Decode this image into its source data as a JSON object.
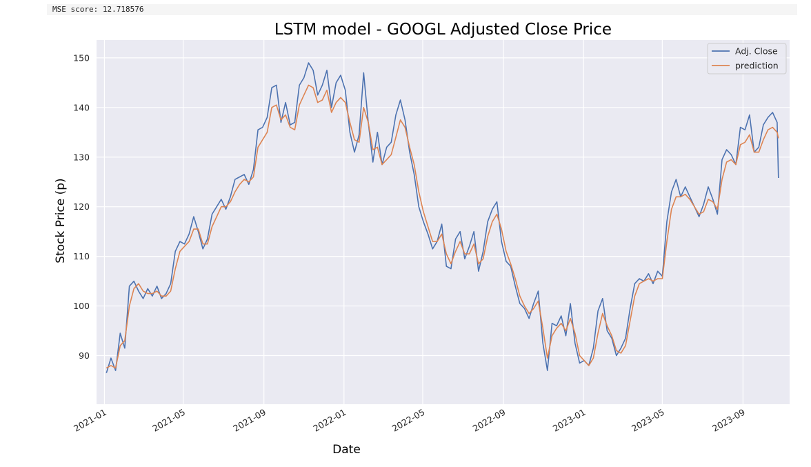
{
  "cell_output": {
    "text": "MSE score: 12.718576"
  },
  "chart_data": {
    "type": "line",
    "title": "LSTM model - GOOGL Adjusted Close Price",
    "xlabel": "Date",
    "ylabel": "Stock Price (p)",
    "x_type": "date",
    "xlim": [
      "2020-12-20",
      "2023-11-11"
    ],
    "ylim": [
      80.2,
      153.6
    ],
    "x_ticks": [
      "2021-01-01",
      "2021-05-01",
      "2021-09-01",
      "2022-01-01",
      "2022-05-01",
      "2022-09-01",
      "2023-01-01",
      "2023-05-01",
      "2023-09-01"
    ],
    "x_tick_labels": [
      "2021-01",
      "2021-05",
      "2021-09",
      "2022-01",
      "2022-05",
      "2022-09",
      "2023-01",
      "2023-05",
      "2023-09"
    ],
    "y_ticks": [
      90,
      100,
      110,
      120,
      130,
      140,
      150
    ],
    "y_tick_labels": [
      "90",
      "100",
      "110",
      "120",
      "130",
      "140",
      "150"
    ],
    "grid": true,
    "legend": "top-right",
    "colors": {
      "background": "#eaeaf2",
      "grid": "#ffffff",
      "actual": "#4c72b0",
      "prediction": "#dd8452"
    },
    "series": [
      {
        "name": "Adj. Close",
        "x": [
          "2021-01-04",
          "2021-01-11",
          "2021-01-18",
          "2021-01-25",
          "2021-02-01",
          "2021-02-08",
          "2021-02-15",
          "2021-02-22",
          "2021-03-01",
          "2021-03-08",
          "2021-03-15",
          "2021-03-22",
          "2021-03-29",
          "2021-04-05",
          "2021-04-12",
          "2021-04-19",
          "2021-04-26",
          "2021-05-03",
          "2021-05-10",
          "2021-05-17",
          "2021-05-24",
          "2021-05-31",
          "2021-06-07",
          "2021-06-14",
          "2021-06-21",
          "2021-06-28",
          "2021-07-05",
          "2021-07-12",
          "2021-07-19",
          "2021-07-26",
          "2021-08-02",
          "2021-08-09",
          "2021-08-16",
          "2021-08-23",
          "2021-08-30",
          "2021-09-06",
          "2021-09-13",
          "2021-09-20",
          "2021-09-27",
          "2021-10-04",
          "2021-10-11",
          "2021-10-18",
          "2021-10-25",
          "2021-11-01",
          "2021-11-08",
          "2021-11-15",
          "2021-11-22",
          "2021-11-29",
          "2021-12-06",
          "2021-12-13",
          "2021-12-20",
          "2021-12-27",
          "2022-01-03",
          "2022-01-10",
          "2022-01-17",
          "2022-01-24",
          "2022-01-31",
          "2022-02-07",
          "2022-02-14",
          "2022-02-21",
          "2022-02-28",
          "2022-03-07",
          "2022-03-14",
          "2022-03-21",
          "2022-03-28",
          "2022-04-04",
          "2022-04-11",
          "2022-04-18",
          "2022-04-25",
          "2022-05-02",
          "2022-05-09",
          "2022-05-16",
          "2022-05-23",
          "2022-05-30",
          "2022-06-06",
          "2022-06-13",
          "2022-06-20",
          "2022-06-27",
          "2022-07-04",
          "2022-07-11",
          "2022-07-18",
          "2022-07-25",
          "2022-08-01",
          "2022-08-08",
          "2022-08-15",
          "2022-08-22",
          "2022-08-29",
          "2022-09-05",
          "2022-09-12",
          "2022-09-19",
          "2022-09-26",
          "2022-10-03",
          "2022-10-10",
          "2022-10-17",
          "2022-10-24",
          "2022-10-31",
          "2022-11-07",
          "2022-11-14",
          "2022-11-21",
          "2022-11-28",
          "2022-12-05",
          "2022-12-12",
          "2022-12-19",
          "2022-12-26",
          "2023-01-02",
          "2023-01-09",
          "2023-01-16",
          "2023-01-23",
          "2023-01-30",
          "2023-02-06",
          "2023-02-13",
          "2023-02-20",
          "2023-02-27",
          "2023-03-06",
          "2023-03-13",
          "2023-03-20",
          "2023-03-27",
          "2023-04-03",
          "2023-04-10",
          "2023-04-17",
          "2023-04-24",
          "2023-05-01",
          "2023-05-08",
          "2023-05-15",
          "2023-05-22",
          "2023-05-29",
          "2023-06-05",
          "2023-06-12",
          "2023-06-19",
          "2023-06-26",
          "2023-07-03",
          "2023-07-10",
          "2023-07-17",
          "2023-07-24",
          "2023-07-31",
          "2023-08-07",
          "2023-08-14",
          "2023-08-21",
          "2023-08-28",
          "2023-09-04",
          "2023-09-11",
          "2023-09-18",
          "2023-09-25",
          "2023-10-02",
          "2023-10-09",
          "2023-10-16",
          "2023-10-23",
          "2023-10-25"
        ],
        "values": [
          86.5,
          89.5,
          87.0,
          94.5,
          91.5,
          104.0,
          105.0,
          103.0,
          101.5,
          103.5,
          102.0,
          104.0,
          101.5,
          102.5,
          104.5,
          111.0,
          113.0,
          112.5,
          114.5,
          118.0,
          115.0,
          111.5,
          113.5,
          118.5,
          120.0,
          121.5,
          119.5,
          122.0,
          125.5,
          126.0,
          126.5,
          124.5,
          127.5,
          135.5,
          136.0,
          138.0,
          144.0,
          144.5,
          137.0,
          141.0,
          136.5,
          137.0,
          144.5,
          146.0,
          149.0,
          147.5,
          142.5,
          144.5,
          147.5,
          140.0,
          145.0,
          146.5,
          143.5,
          135.0,
          131.0,
          134.5,
          147.0,
          137.0,
          129.0,
          135.0,
          128.5,
          132.0,
          133.0,
          138.5,
          141.5,
          137.5,
          131.0,
          126.5,
          120.0,
          117.0,
          114.5,
          111.5,
          113.0,
          116.5,
          108.0,
          107.5,
          113.5,
          115.0,
          109.5,
          112.0,
          115.0,
          107.0,
          111.0,
          117.0,
          119.5,
          121.0,
          113.0,
          109.0,
          108.0,
          104.0,
          100.5,
          99.5,
          97.5,
          100.5,
          103.0,
          92.5,
          87.0,
          96.5,
          96.0,
          98.0,
          94.0,
          100.5,
          92.5,
          88.5,
          89.0,
          88.0,
          91.5,
          99.0,
          101.5,
          95.0,
          93.5,
          90.0,
          91.5,
          93.5,
          99.5,
          104.5,
          105.5,
          105.0,
          106.5,
          104.5,
          107.0,
          106.0,
          117.0,
          123.0,
          125.5,
          122.0,
          124.0,
          122.0,
          120.0,
          118.0,
          120.5,
          124.0,
          121.5,
          118.5,
          129.5,
          131.5,
          130.5,
          128.5,
          136.0,
          135.5,
          138.5,
          131.0,
          132.0,
          136.5,
          138.0,
          139.0,
          137.0,
          125.8
        ]
      },
      {
        "name": "prediction",
        "x": [
          "2021-01-04",
          "2021-01-11",
          "2021-01-18",
          "2021-01-25",
          "2021-02-01",
          "2021-02-08",
          "2021-02-15",
          "2021-02-22",
          "2021-03-01",
          "2021-03-08",
          "2021-03-15",
          "2021-03-22",
          "2021-03-29",
          "2021-04-05",
          "2021-04-12",
          "2021-04-19",
          "2021-04-26",
          "2021-05-03",
          "2021-05-10",
          "2021-05-17",
          "2021-05-24",
          "2021-05-31",
          "2021-06-07",
          "2021-06-14",
          "2021-06-21",
          "2021-06-28",
          "2021-07-05",
          "2021-07-12",
          "2021-07-19",
          "2021-07-26",
          "2021-08-02",
          "2021-08-09",
          "2021-08-16",
          "2021-08-23",
          "2021-08-30",
          "2021-09-06",
          "2021-09-13",
          "2021-09-20",
          "2021-09-27",
          "2021-10-04",
          "2021-10-11",
          "2021-10-18",
          "2021-10-25",
          "2021-11-01",
          "2021-11-08",
          "2021-11-15",
          "2021-11-22",
          "2021-11-29",
          "2021-12-06",
          "2021-12-13",
          "2021-12-20",
          "2021-12-27",
          "2022-01-03",
          "2022-01-10",
          "2022-01-17",
          "2022-01-24",
          "2022-01-31",
          "2022-02-07",
          "2022-02-14",
          "2022-02-21",
          "2022-02-28",
          "2022-03-07",
          "2022-03-14",
          "2022-03-21",
          "2022-03-28",
          "2022-04-04",
          "2022-04-11",
          "2022-04-18",
          "2022-04-25",
          "2022-05-02",
          "2022-05-09",
          "2022-05-16",
          "2022-05-23",
          "2022-05-30",
          "2022-06-06",
          "2022-06-13",
          "2022-06-20",
          "2022-06-27",
          "2022-07-04",
          "2022-07-11",
          "2022-07-18",
          "2022-07-25",
          "2022-08-01",
          "2022-08-08",
          "2022-08-15",
          "2022-08-22",
          "2022-08-29",
          "2022-09-05",
          "2022-09-12",
          "2022-09-19",
          "2022-09-26",
          "2022-10-03",
          "2022-10-10",
          "2022-10-17",
          "2022-10-24",
          "2022-10-31",
          "2022-11-07",
          "2022-11-14",
          "2022-11-21",
          "2022-11-28",
          "2022-12-05",
          "2022-12-12",
          "2022-12-19",
          "2022-12-26",
          "2023-01-02",
          "2023-01-09",
          "2023-01-16",
          "2023-01-23",
          "2023-01-30",
          "2023-02-06",
          "2023-02-13",
          "2023-02-20",
          "2023-02-27",
          "2023-03-06",
          "2023-03-13",
          "2023-03-20",
          "2023-03-27",
          "2023-04-03",
          "2023-04-10",
          "2023-04-17",
          "2023-04-24",
          "2023-05-01",
          "2023-05-08",
          "2023-05-15",
          "2023-05-22",
          "2023-05-29",
          "2023-06-05",
          "2023-06-12",
          "2023-06-19",
          "2023-06-26",
          "2023-07-03",
          "2023-07-10",
          "2023-07-17",
          "2023-07-24",
          "2023-07-31",
          "2023-08-07",
          "2023-08-14",
          "2023-08-21",
          "2023-08-28",
          "2023-09-04",
          "2023-09-11",
          "2023-09-18",
          "2023-09-25",
          "2023-10-02",
          "2023-10-09",
          "2023-10-16",
          "2023-10-23",
          "2023-10-25"
        ],
        "values": [
          87.5,
          88.0,
          87.5,
          92.0,
          93.0,
          100.0,
          103.5,
          104.5,
          103.0,
          102.5,
          102.5,
          103.0,
          102.0,
          102.0,
          103.0,
          107.5,
          111.0,
          112.0,
          113.0,
          115.5,
          115.5,
          112.5,
          112.5,
          116.0,
          118.0,
          120.0,
          120.0,
          121.0,
          123.0,
          124.5,
          125.5,
          125.0,
          126.0,
          132.0,
          133.5,
          135.0,
          140.0,
          140.5,
          137.5,
          138.5,
          136.0,
          135.5,
          140.5,
          142.5,
          144.5,
          144.0,
          141.0,
          141.5,
          143.5,
          139.0,
          141.0,
          142.0,
          141.0,
          137.0,
          133.5,
          133.0,
          140.0,
          137.0,
          131.5,
          132.0,
          128.5,
          129.5,
          130.5,
          134.0,
          137.5,
          136.0,
          132.0,
          128.5,
          123.0,
          119.0,
          116.0,
          113.0,
          113.0,
          114.5,
          110.5,
          108.5,
          111.0,
          113.0,
          110.5,
          110.5,
          112.5,
          108.5,
          109.5,
          114.0,
          117.0,
          118.5,
          115.5,
          111.0,
          108.5,
          105.5,
          102.0,
          100.0,
          98.5,
          99.5,
          101.0,
          95.5,
          89.5,
          94.0,
          95.5,
          96.5,
          95.0,
          97.5,
          94.5,
          90.0,
          89.0,
          88.0,
          89.5,
          94.5,
          98.5,
          96.0,
          94.0,
          91.0,
          90.5,
          92.0,
          97.0,
          102.0,
          104.5,
          105.0,
          105.5,
          105.0,
          105.5,
          105.5,
          113.0,
          119.5,
          122.0,
          122.0,
          122.5,
          121.5,
          120.0,
          118.5,
          119.0,
          121.5,
          121.0,
          119.5,
          125.5,
          129.0,
          129.5,
          128.5,
          132.5,
          133.0,
          134.5,
          131.0,
          131.0,
          133.5,
          135.5,
          136.0,
          135.0,
          133.8
        ]
      }
    ]
  }
}
